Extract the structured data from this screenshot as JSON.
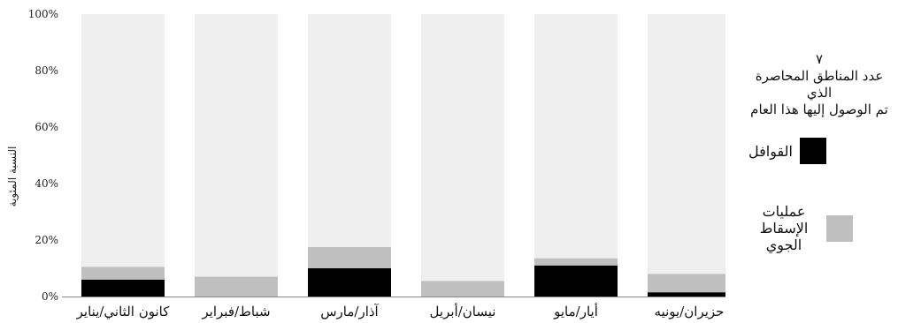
{
  "chart_data": {
    "type": "bar",
    "stacked": true,
    "categories": [
      "كانون الثاني/يناير",
      "شباط/فبراير",
      "آذار/مارس",
      "نيسان/أبريل",
      "أيار/مايو",
      "حزيران/يونيه"
    ],
    "series": [
      {
        "name": "القوافل",
        "values": [
          6,
          0,
          10,
          0,
          11,
          1.5
        ],
        "color": "#000000"
      },
      {
        "name": "عمليات الإسقاط الجوي",
        "values": [
          4.5,
          7,
          7.5,
          5.5,
          2.5,
          6.5
        ],
        "color": "#bfbfbf"
      }
    ],
    "remainder_color": "#efefef",
    "ylabel": "النسبة المئوية",
    "xlabel": "",
    "ylim": [
      0,
      100
    ],
    "yticks": [
      "0%",
      "20%",
      "40%",
      "60%",
      "80%",
      "100%"
    ],
    "grid": false,
    "legend": {
      "placement": "right",
      "note_lines": [
        "٧",
        "عدد المناطق المحاصرة الذي",
        "تم الوصول إليها هذا العام"
      ]
    }
  }
}
